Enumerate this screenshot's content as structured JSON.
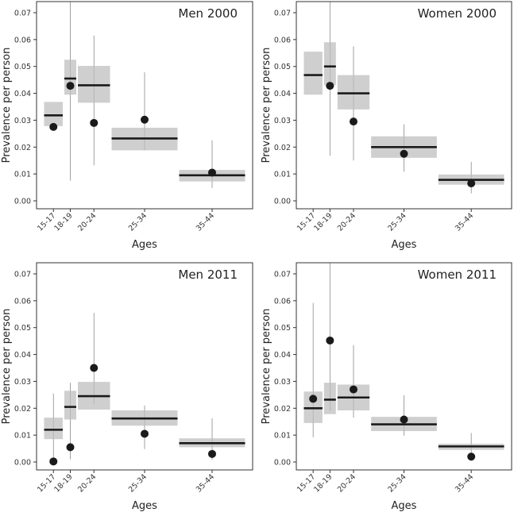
{
  "chart_data": [
    {
      "type": "scatter",
      "title": "Men 2000",
      "xlabel": "Ages",
      "ylabel": "Prevalence per person",
      "ylim": [
        0,
        0.07
      ],
      "yticks": [
        "0.00",
        "0.01",
        "0.02",
        "0.03",
        "0.04",
        "0.05",
        "0.06",
        "0.07"
      ],
      "grid": false,
      "categories": [
        {
          "label": "15-17",
          "from": 15,
          "to": 18,
          "estimate": 0.0318,
          "band": [
            0.0278,
            0.0368
          ],
          "observed": 0.0275,
          "ci": [
            null,
            null
          ]
        },
        {
          "label": "18-19",
          "from": 18,
          "to": 20,
          "estimate": 0.0455,
          "band": [
            0.0395,
            0.0525
          ],
          "observed": 0.0428,
          "ci": [
            0.0075,
            0.075
          ]
        },
        {
          "label": "20-24",
          "from": 20,
          "to": 25,
          "estimate": 0.043,
          "band": [
            0.0365,
            0.0502
          ],
          "observed": 0.029,
          "ci": [
            0.0132,
            0.0615
          ]
        },
        {
          "label": "25-34",
          "from": 25,
          "to": 35,
          "estimate": 0.0232,
          "band": [
            0.0188,
            0.0272
          ],
          "observed": 0.0302,
          "ci": [
            0.0188,
            0.0478
          ]
        },
        {
          "label": "35-44",
          "from": 35,
          "to": 45,
          "estimate": 0.0095,
          "band": [
            0.0072,
            0.0115
          ],
          "observed": 0.0105,
          "ci": [
            0.0048,
            0.0225
          ]
        }
      ]
    },
    {
      "type": "scatter",
      "title": "Women 2000",
      "xlabel": "Ages",
      "ylabel": "Prevalence per person",
      "ylim": [
        0,
        0.07
      ],
      "yticks": [
        "0.00",
        "0.01",
        "0.02",
        "0.03",
        "0.04",
        "0.05",
        "0.06",
        "0.07"
      ],
      "grid": false,
      "categories": [
        {
          "label": "15-17",
          "from": 15,
          "to": 18,
          "estimate": 0.0468,
          "band": [
            0.0395,
            0.0555
          ],
          "observed": null,
          "ci": [
            null,
            null
          ]
        },
        {
          "label": "18-19",
          "from": 18,
          "to": 20,
          "estimate": 0.05,
          "band": [
            0.043,
            0.059
          ],
          "observed": 0.0428,
          "ci": [
            0.0168,
            0.075
          ]
        },
        {
          "label": "20-24",
          "from": 20,
          "to": 25,
          "estimate": 0.04,
          "band": [
            0.034,
            0.0468
          ],
          "observed": 0.0295,
          "ci": [
            0.015,
            0.0575
          ]
        },
        {
          "label": "25-34",
          "from": 25,
          "to": 35,
          "estimate": 0.02,
          "band": [
            0.016,
            0.024
          ],
          "observed": 0.0175,
          "ci": [
            0.0108,
            0.0285
          ]
        },
        {
          "label": "35-44",
          "from": 35,
          "to": 45,
          "estimate": 0.0078,
          "band": [
            0.006,
            0.0098
          ],
          "observed": 0.0065,
          "ci": [
            0.0028,
            0.0145
          ]
        }
      ]
    },
    {
      "type": "scatter",
      "title": "Men 2011",
      "xlabel": "Ages",
      "ylabel": "Prevalence per person",
      "ylim": [
        0,
        0.07
      ],
      "yticks": [
        "0.00",
        "0.01",
        "0.02",
        "0.03",
        "0.04",
        "0.05",
        "0.06",
        "0.07"
      ],
      "grid": false,
      "categories": [
        {
          "label": "15-17",
          "from": 15,
          "to": 18,
          "estimate": 0.012,
          "band": [
            0.0085,
            0.0165
          ],
          "observed": 0.0002,
          "ci": [
            0.0,
            0.0255
          ]
        },
        {
          "label": "18-19",
          "from": 18,
          "to": 20,
          "estimate": 0.0205,
          "band": [
            0.0158,
            0.0265
          ],
          "observed": 0.0055,
          "ci": [
            0.001,
            0.0295
          ]
        },
        {
          "label": "20-24",
          "from": 20,
          "to": 25,
          "estimate": 0.0245,
          "band": [
            0.0195,
            0.0298
          ],
          "observed": 0.035,
          "ci": [
            0.0215,
            0.0555
          ]
        },
        {
          "label": "25-34",
          "from": 25,
          "to": 35,
          "estimate": 0.0162,
          "band": [
            0.0135,
            0.0192
          ],
          "observed": 0.0105,
          "ci": [
            0.0048,
            0.021
          ]
        },
        {
          "label": "35-44",
          "from": 35,
          "to": 45,
          "estimate": 0.007,
          "band": [
            0.0055,
            0.0088
          ],
          "observed": 0.003,
          "ci": [
            0.0008,
            0.0162
          ]
        }
      ]
    },
    {
      "type": "scatter",
      "title": "Women 2011",
      "xlabel": "Ages",
      "ylabel": "Prevalence per person",
      "ylim": [
        0,
        0.07
      ],
      "yticks": [
        "0.00",
        "0.01",
        "0.02",
        "0.03",
        "0.04",
        "0.05",
        "0.06",
        "0.07"
      ],
      "grid": false,
      "categories": [
        {
          "label": "15-17",
          "from": 15,
          "to": 18,
          "estimate": 0.02,
          "band": [
            0.0145,
            0.0262
          ],
          "observed": 0.0235,
          "ci": [
            0.0092,
            0.0592
          ]
        },
        {
          "label": "18-19",
          "from": 18,
          "to": 20,
          "estimate": 0.0232,
          "band": [
            0.0178,
            0.0295
          ],
          "observed": 0.0452,
          "ci": [
            0.019,
            0.075
          ]
        },
        {
          "label": "20-24",
          "from": 20,
          "to": 25,
          "estimate": 0.024,
          "band": [
            0.0192,
            0.0288
          ],
          "observed": 0.027,
          "ci": [
            0.0165,
            0.0435
          ]
        },
        {
          "label": "25-34",
          "from": 25,
          "to": 35,
          "estimate": 0.014,
          "band": [
            0.0115,
            0.0168
          ],
          "observed": 0.0158,
          "ci": [
            0.0098,
            0.0248
          ]
        },
        {
          "label": "35-44",
          "from": 35,
          "to": 45,
          "estimate": 0.0058,
          "band": [
            0.0045,
            0.0068
          ],
          "observed": 0.002,
          "ci": [
            0.0005,
            0.0108
          ]
        }
      ]
    }
  ]
}
